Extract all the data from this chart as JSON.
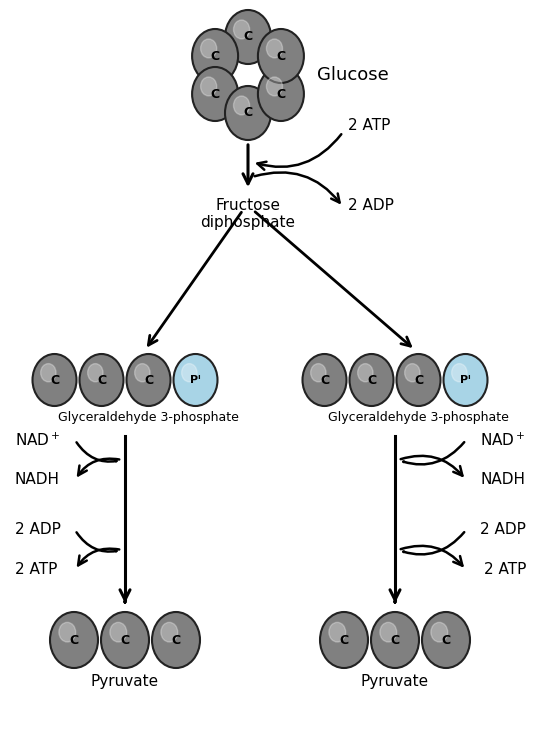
{
  "bg_color": "#ffffff",
  "gray_color": "#808080",
  "gray_edge": "#222222",
  "blue_color": "#a8d4e6",
  "blue_edge": "#222222",
  "glucose_label": "Glucose",
  "fructose_label": "Fructose\ndiphosphate",
  "g3p_label": "Glyceraldehyde 3-phosphate",
  "pyruvate_label": "Pyruvate",
  "nad_plus": "NAD$^+$",
  "nadh": "NADH",
  "adp2": "2 ADP",
  "atp2": "2 ATP",
  "figw": 5.41,
  "figh": 7.52,
  "dpi": 100
}
